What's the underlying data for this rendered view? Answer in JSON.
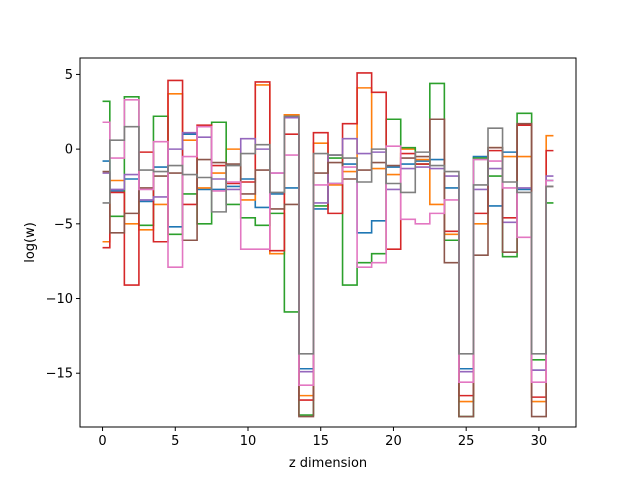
{
  "chart_data": {
    "type": "line",
    "step": "mid",
    "xlabel": "z dimension",
    "ylabel": "log(w)",
    "xlim": [
      -1.55,
      32.55
    ],
    "ylim": [
      -18.6,
      6.1
    ],
    "xticks": [
      0,
      5,
      10,
      15,
      20,
      25,
      30
    ],
    "yticks": [
      5,
      0,
      -5,
      -10,
      -15
    ],
    "ytick_labels": [
      "5",
      "0",
      "−5",
      "−10",
      "−15"
    ],
    "x": [
      0,
      1,
      2,
      3,
      4,
      5,
      6,
      7,
      8,
      9,
      10,
      11,
      12,
      13,
      14,
      15,
      16,
      17,
      18,
      19,
      20,
      21,
      22,
      23,
      24,
      25,
      26,
      27,
      28,
      29,
      30,
      31
    ],
    "series": [
      {
        "color": "#1f77b4",
        "values": [
          -0.8,
          -2.8,
          -2.0,
          -3.5,
          -1.2,
          -5.2,
          1.0,
          -2.7,
          -2.7,
          -2.5,
          -2.0,
          -3.9,
          -3.0,
          -2.6,
          -14.7,
          -4.0,
          -2.3,
          -1.0,
          -5.6,
          -4.8,
          -1.2,
          -1.0,
          -0.8,
          -0.7,
          -2.6,
          -14.7,
          -0.5,
          -3.8,
          -0.2,
          -2.7,
          -14.8,
          -2.1
        ]
      },
      {
        "color": "#ff7f0e",
        "values": [
          -6.2,
          -2.1,
          -5.0,
          -5.4,
          -3.7,
          3.7,
          0.6,
          -2.6,
          -1.6,
          0.0,
          -3.4,
          4.3,
          -7.0,
          2.3,
          -16.5,
          0.4,
          -2.4,
          -1.5,
          4.1,
          -1.3,
          -1.7,
          0.0,
          -0.7,
          -3.7,
          -5.7,
          -16.9,
          -5.0,
          0.1,
          -0.5,
          -0.5,
          -16.9,
          0.9
        ]
      },
      {
        "color": "#2ca02c",
        "values": [
          3.2,
          -4.5,
          3.5,
          -5.1,
          2.2,
          -5.7,
          -3.0,
          -5.0,
          1.8,
          -3.7,
          -4.6,
          -5.1,
          -4.3,
          -10.9,
          -17.8,
          -3.8,
          -0.6,
          -9.1,
          -7.6,
          -7.0,
          2.0,
          0.1,
          -1.0,
          4.4,
          -6.1,
          -17.9,
          -0.6,
          -1.8,
          -7.2,
          2.4,
          -14.1,
          -3.6
        ]
      },
      {
        "color": "#d62728",
        "values": [
          -6.6,
          -2.9,
          -9.1,
          -0.2,
          -6.2,
          4.6,
          -3.7,
          1.6,
          -1.1,
          -2.3,
          -2.2,
          4.5,
          -6.8,
          1.0,
          -16.8,
          1.1,
          -4.3,
          1.7,
          5.1,
          3.8,
          -6.7,
          -0.3,
          -1.0,
          2.0,
          -5.5,
          -16.5,
          -4.3,
          -0.1,
          -4.6,
          1.6,
          -16.6,
          -0.1
        ]
      },
      {
        "color": "#9467bd",
        "values": [
          -1.6,
          -2.7,
          -1.7,
          -3.4,
          -3.2,
          0.0,
          1.1,
          0.8,
          -2.0,
          -2.7,
          0.7,
          0.0,
          -1.6,
          2.1,
          -14.9,
          -3.6,
          -0.4,
          0.7,
          -0.3,
          -0.2,
          -2.7,
          -1.3,
          -1.2,
          -1.3,
          -1.8,
          -14.9,
          -2.7,
          -1.3,
          -4.9,
          -2.6,
          -14.8,
          -1.8
        ]
      },
      {
        "color": "#8c564b",
        "values": [
          -1.5,
          -5.6,
          -4.3,
          -2.6,
          -1.8,
          -1.6,
          -6.1,
          -0.7,
          -0.9,
          -1.0,
          -3.0,
          -1.4,
          -4.0,
          -3.7,
          -17.9,
          -1.6,
          -0.9,
          -2.0,
          -1.4,
          -0.9,
          -1.1,
          -0.6,
          -0.5,
          2.0,
          -7.6,
          -17.9,
          -7.1,
          0.1,
          -6.9,
          1.7,
          -17.9,
          -2.5
        ]
      },
      {
        "color": "#e377c2",
        "values": [
          1.8,
          -0.6,
          3.3,
          -2.7,
          0.5,
          -7.9,
          -0.5,
          1.5,
          -2.8,
          -2.2,
          -6.7,
          -6.7,
          -1.6,
          -0.4,
          -15.8,
          -2.4,
          -2.3,
          -1.2,
          -7.9,
          -7.6,
          0.2,
          -4.7,
          -5.0,
          -4.3,
          -3.4,
          -15.6,
          -0.7,
          -0.8,
          -2.6,
          -5.9,
          -15.6,
          -2.1
        ]
      },
      {
        "color": "#7f7f7f",
        "values": [
          -3.6,
          0.6,
          1.5,
          -1.4,
          -1.5,
          -1.1,
          -1.7,
          -1.9,
          -4.2,
          -1.1,
          -0.3,
          0.3,
          -2.9,
          2.2,
          -13.7,
          -0.3,
          -0.4,
          -0.6,
          -2.2,
          0.0,
          -2.3,
          -2.9,
          -0.2,
          -1.1,
          -1.5,
          -13.7,
          -2.4,
          1.4,
          -2.2,
          -2.9,
          -13.7,
          -2.5
        ]
      }
    ]
  }
}
